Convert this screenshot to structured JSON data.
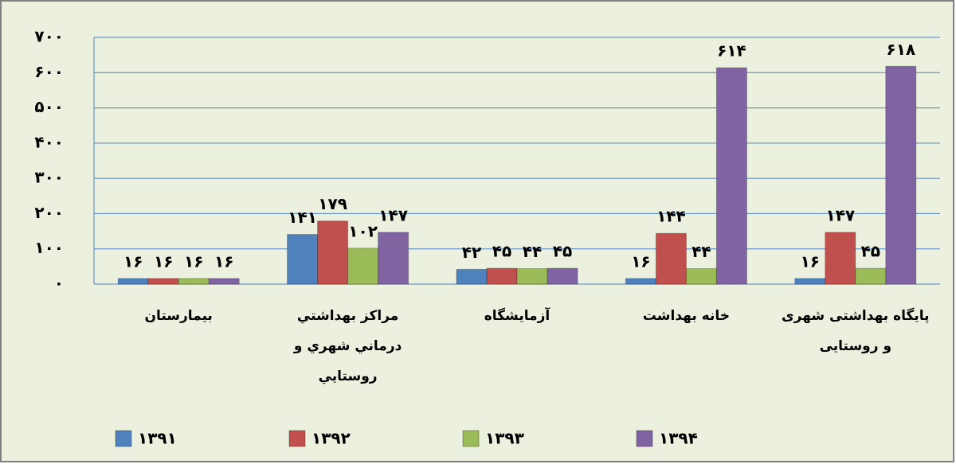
{
  "chart_data": {
    "type": "bar",
    "categories": [
      "بیمارستان",
      "مراکز بهداشتي درماني شهري و روستايي",
      "آزمایشگاه",
      "خانه بهداشت",
      "پایگاه بهداشتی شهری و روستایی"
    ],
    "series": [
      {
        "name": "۱۳۹۱",
        "color": "#4f81bd",
        "values": [
          16,
          141,
          42,
          16,
          16
        ],
        "value_labels": [
          "۱۶",
          "۱۴۱",
          "۴۲",
          "۱۶",
          "۱۶"
        ]
      },
      {
        "name": "۱۳۹۲",
        "color": "#c0504d",
        "values": [
          16,
          179,
          45,
          144,
          147
        ],
        "value_labels": [
          "۱۶",
          "۱۷۹",
          "۴۵",
          "۱۴۴",
          "۱۴۷"
        ]
      },
      {
        "name": "۱۳۹۳",
        "color": "#9bbb59",
        "values": [
          16,
          102,
          44,
          44,
          45
        ],
        "value_labels": [
          "۱۶",
          "۱۰۲",
          "۴۴",
          "۴۴",
          "۴۵"
        ]
      },
      {
        "name": "۱۳۹۴",
        "color": "#8064a2",
        "values": [
          16,
          147,
          45,
          614,
          618
        ],
        "value_labels": [
          "۱۶",
          "۱۴۷",
          "۴۵",
          "۶۱۴",
          "۶۱۸"
        ]
      }
    ],
    "ylim": [
      0,
      700
    ],
    "yticks": [
      {
        "value": 0,
        "label": "۰"
      },
      {
        "value": 100,
        "label": "۱۰۰"
      },
      {
        "value": 200,
        "label": "۲۰۰"
      },
      {
        "value": 300,
        "label": "۳۰۰"
      },
      {
        "value": 400,
        "label": "۴۰۰"
      },
      {
        "value": 500,
        "label": "۵۰۰"
      },
      {
        "value": 600,
        "label": "۶۰۰"
      },
      {
        "value": 700,
        "label": "۷۰۰"
      }
    ],
    "grid": true,
    "legend": "bottom"
  }
}
